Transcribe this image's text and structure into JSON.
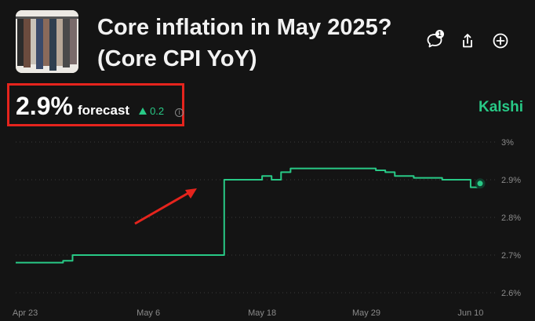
{
  "header": {
    "title_line1": "Core inflation in May 2025?",
    "title_line2": "(Core CPI YoY)",
    "comment_count": "1",
    "icons": [
      "comment-icon",
      "share-icon",
      "add-icon"
    ]
  },
  "forecast": {
    "value": "2.9%",
    "label": "forecast",
    "delta": "0.2",
    "delta_direction": "up"
  },
  "brand": "Kalshi",
  "colors": {
    "line": "#28c986",
    "background": "#141414",
    "highlight_box": "#e5241d",
    "arrow": "#e5241d"
  },
  "chart_data": {
    "type": "line",
    "x_tick_labels": [
      "Apr 23",
      "May 6",
      "May 18",
      "May 29",
      "Jun 10"
    ],
    "y_tick_labels": [
      "3%",
      "2.9%",
      "2.8%",
      "2.7%",
      "2.6%"
    ],
    "ylim": [
      2.6,
      3.0
    ],
    "grid": true,
    "series": [
      {
        "x": [
          "2025-04-23",
          "2025-04-24",
          "2025-04-25",
          "2025-04-26",
          "2025-04-27",
          "2025-04-28",
          "2025-04-29",
          "2025-04-30",
          "2025-05-01",
          "2025-05-02",
          "2025-05-03",
          "2025-05-04",
          "2025-05-05",
          "2025-05-06",
          "2025-05-07",
          "2025-05-08",
          "2025-05-09",
          "2025-05-10",
          "2025-05-11",
          "2025-05-12",
          "2025-05-13",
          "2025-05-14",
          "2025-05-15",
          "2025-05-16",
          "2025-05-17",
          "2025-05-18",
          "2025-05-19",
          "2025-05-20",
          "2025-05-21",
          "2025-05-22",
          "2025-05-23",
          "2025-05-24",
          "2025-05-25",
          "2025-05-26",
          "2025-05-27",
          "2025-05-28",
          "2025-05-29",
          "2025-05-30",
          "2025-05-31",
          "2025-06-01",
          "2025-06-02",
          "2025-06-03",
          "2025-06-04",
          "2025-06-05",
          "2025-06-06",
          "2025-06-07",
          "2025-06-08",
          "2025-06-09",
          "2025-06-10",
          "2025-06-11"
        ],
        "y": [
          2.68,
          2.68,
          2.68,
          2.68,
          2.68,
          2.685,
          2.7,
          2.7,
          2.7,
          2.7,
          2.7,
          2.7,
          2.7,
          2.7,
          2.7,
          2.7,
          2.7,
          2.7,
          2.7,
          2.7,
          2.7,
          2.7,
          2.9,
          2.9,
          2.9,
          2.9,
          2.91,
          2.9,
          2.92,
          2.93,
          2.93,
          2.93,
          2.93,
          2.93,
          2.93,
          2.93,
          2.93,
          2.93,
          2.925,
          2.92,
          2.91,
          2.91,
          2.905,
          2.905,
          2.905,
          2.9,
          2.9,
          2.9,
          2.88,
          2.89
        ]
      }
    ]
  },
  "annotation": {
    "type": "arrow",
    "target": "jump"
  }
}
